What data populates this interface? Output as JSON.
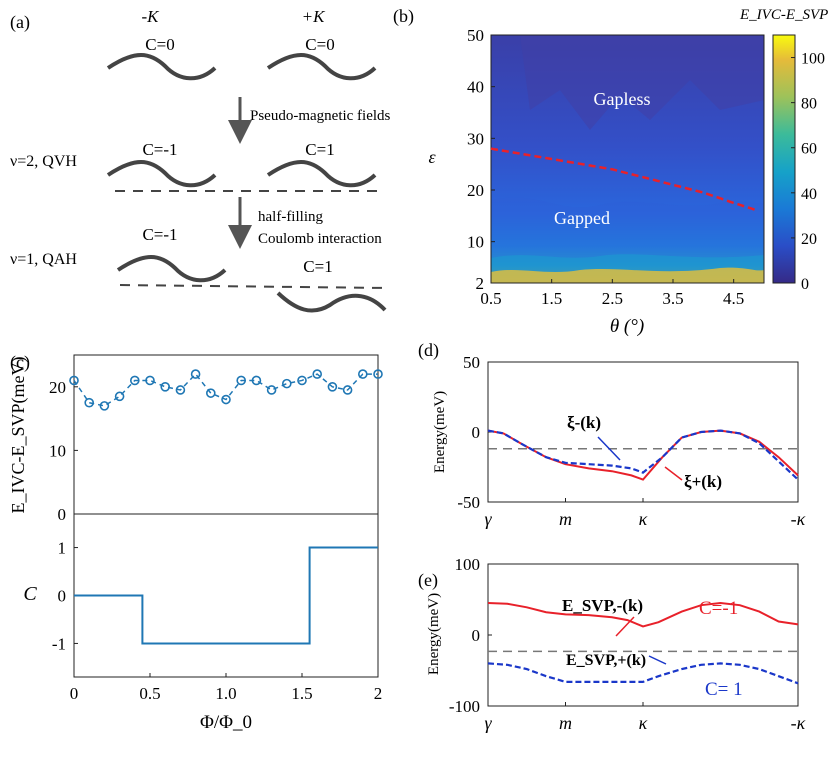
{
  "panel_labels": {
    "a": "(a)",
    "b": "(b)",
    "c": "(c)",
    "d": "(d)",
    "e": "(e)"
  },
  "schematic": {
    "valley_left": "-K",
    "valley_right": "+K",
    "top_c_left": "C=0",
    "top_c_right": "C=0",
    "arrow1_label": "Pseudo-magnetic fields",
    "qvh_state": "ν=2, QVH",
    "qvh_c_left": "C=-1",
    "qvh_c_right": "C=1",
    "arrow2_label_line1": "half-filling",
    "arrow2_label_line2": "Coulomb interaction",
    "qah_state": "ν=1, QAH",
    "qah_c_left": "C=-1",
    "qah_c_right": "C=1"
  },
  "chart_data": [
    {
      "id": "b",
      "type": "heatmap",
      "title": "E_IVC-E_SVP",
      "xlabel": "θ (°)",
      "ylabel": "ε",
      "xlim": [
        0.5,
        5.0
      ],
      "ylim": [
        2,
        50
      ],
      "xticks": [
        "0.5",
        "1.5",
        "2.5",
        "3.5",
        "4.5"
      ],
      "xtick_values": [
        0.5,
        1.5,
        2.5,
        3.5,
        4.5
      ],
      "yticks": [
        "2",
        "10",
        "20",
        "30",
        "40",
        "50"
      ],
      "ytick_values": [
        2,
        10,
        20,
        30,
        40,
        50
      ],
      "colorbar_ticks": [
        "0",
        "20",
        "40",
        "60",
        "80",
        "100"
      ],
      "colorbar_values": [
        0,
        20,
        40,
        60,
        80,
        100
      ],
      "colorbar_range": [
        0,
        110
      ],
      "annotations": {
        "gapless": "Gapless",
        "gapped": "Gapped"
      },
      "phase_boundary": {
        "x": [
          0.5,
          1.0,
          1.5,
          2.0,
          2.5,
          3.0,
          3.5,
          4.0,
          4.5,
          4.9
        ],
        "y": [
          28,
          27,
          26,
          25,
          24,
          22.5,
          21,
          19.5,
          17.5,
          16
        ]
      }
    },
    {
      "id": "c-top",
      "type": "line",
      "xlabel": "",
      "ylabel": "E_IVC-E_SVP(meV)",
      "xlim": [
        0,
        2
      ],
      "ylim": [
        0,
        25
      ],
      "yticks": [
        "0",
        "10",
        "20"
      ],
      "ytick_values": [
        0,
        10,
        20
      ],
      "series": [
        {
          "name": "E_IVC-E_SVP",
          "x": [
            0.0,
            0.1,
            0.2,
            0.3,
            0.4,
            0.5,
            0.6,
            0.7,
            0.8,
            0.9,
            1.0,
            1.1,
            1.2,
            1.3,
            1.4,
            1.5,
            1.6,
            1.7,
            1.8,
            1.9,
            2.0
          ],
          "values": [
            21,
            17.5,
            17,
            18.5,
            21,
            21,
            20,
            19.5,
            22,
            19,
            18,
            21,
            21,
            19.5,
            20.5,
            21,
            22,
            20,
            19.5,
            22,
            22
          ]
        }
      ]
    },
    {
      "id": "c-bottom",
      "type": "line",
      "xlabel": "Φ/Φ_0",
      "ylabel": "C",
      "xlim": [
        0,
        2
      ],
      "ylim": [
        -1.7,
        1.7
      ],
      "xticks": [
        "0",
        "0.5",
        "1.0",
        "1.5",
        "2"
      ],
      "xtick_values": [
        0,
        0.5,
        1.0,
        1.5,
        2.0
      ],
      "yticks": [
        "-1",
        "0",
        "1"
      ],
      "ytick_values": [
        -1,
        0,
        1
      ],
      "series": [
        {
          "name": "C",
          "x": [
            0,
            0.45,
            0.45,
            1.55,
            1.55,
            2.0
          ],
          "values": [
            0,
            0,
            -1,
            -1,
            1,
            1
          ]
        }
      ]
    },
    {
      "id": "d",
      "type": "line",
      "xlabel": "",
      "ylabel": "Energy(meV)",
      "ylim": [
        -50,
        50
      ],
      "yticks": [
        "-50",
        "0",
        "50"
      ],
      "ytick_values": [
        -50,
        0,
        50
      ],
      "xticks": [
        "γ",
        "m",
        "κ",
        "-κ"
      ],
      "xtick_values": [
        0,
        1,
        2,
        4
      ],
      "xlim": [
        0,
        4
      ],
      "reference_level": -12,
      "series": [
        {
          "name": "ξ+(k)",
          "color": "#e8212a",
          "style": "solid",
          "x": [
            0,
            0.2,
            0.45,
            0.75,
            1.0,
            1.3,
            1.6,
            1.85,
            2.0,
            2.25,
            2.5,
            2.75,
            3.0,
            3.25,
            3.5,
            3.75,
            4.0
          ],
          "values": [
            1,
            -1,
            -9,
            -18,
            -23,
            -26,
            -28,
            -31,
            -34,
            -18,
            -4,
            0,
            1,
            -1,
            -7,
            -18,
            -31
          ]
        },
        {
          "name": "ξ-(k)",
          "color": "#1a37c9",
          "style": "dashed",
          "x": [
            0,
            0.2,
            0.45,
            0.75,
            1.0,
            1.3,
            1.6,
            1.85,
            2.0,
            2.25,
            2.5,
            2.75,
            3.0,
            3.25,
            3.5,
            3.75,
            4.0
          ],
          "values": [
            1,
            -1,
            -9,
            -18,
            -22,
            -23,
            -24,
            -26,
            -29,
            -18,
            -4,
            0,
            1,
            -1,
            -8,
            -21,
            -34
          ]
        }
      ],
      "labels": {
        "xi_minus": "ξ-(k)",
        "xi_plus": "ξ+(k)"
      }
    },
    {
      "id": "e",
      "type": "line",
      "xlabel": "",
      "ylabel": "Energy(meV)",
      "ylim": [
        -100,
        100
      ],
      "yticks": [
        "-100",
        "0",
        "100"
      ],
      "ytick_values": [
        -100,
        0,
        100
      ],
      "xticks": [
        "γ",
        "m",
        "κ",
        "-κ"
      ],
      "xtick_values": [
        0,
        1,
        2,
        4
      ],
      "xlim": [
        0,
        4
      ],
      "reference_level": -23,
      "series": [
        {
          "name": "E_SVP,-(k)",
          "color": "#e8212a",
          "style": "solid",
          "x": [
            0,
            0.25,
            0.5,
            0.75,
            1.0,
            1.3,
            1.6,
            1.8,
            2.0,
            2.2,
            2.5,
            2.75,
            3.0,
            3.25,
            3.5,
            3.75,
            4.0
          ],
          "values": [
            45,
            44,
            39,
            32,
            29,
            28,
            25,
            21,
            12,
            18,
            33,
            42,
            45,
            42,
            33,
            19,
            15
          ]
        },
        {
          "name": "E_SVP,+(k)",
          "color": "#1a37c9",
          "style": "dashed",
          "x": [
            0,
            0.25,
            0.5,
            0.75,
            1.0,
            1.3,
            1.6,
            1.8,
            2.0,
            2.2,
            2.5,
            2.75,
            3.0,
            3.25,
            3.5,
            3.75,
            4.0
          ],
          "values": [
            -40,
            -42,
            -48,
            -58,
            -66,
            -66,
            -66,
            -66,
            -66,
            -58,
            -48,
            -42,
            -40,
            -42,
            -48,
            -58,
            -68
          ]
        }
      ],
      "labels": {
        "e_minus": "E_SVP,-(k)",
        "e_plus": "E_SVP,+(k)",
        "c_minus": "C=-1",
        "c_plus": "C= 1"
      }
    }
  ],
  "colors": {
    "red": "#e8212a",
    "blue": "#1a37c9",
    "matlab_blue": "#1f77b4",
    "gray": "#555555",
    "heat_low": "#3b2a8d",
    "heat_high": "#f3e82a"
  }
}
